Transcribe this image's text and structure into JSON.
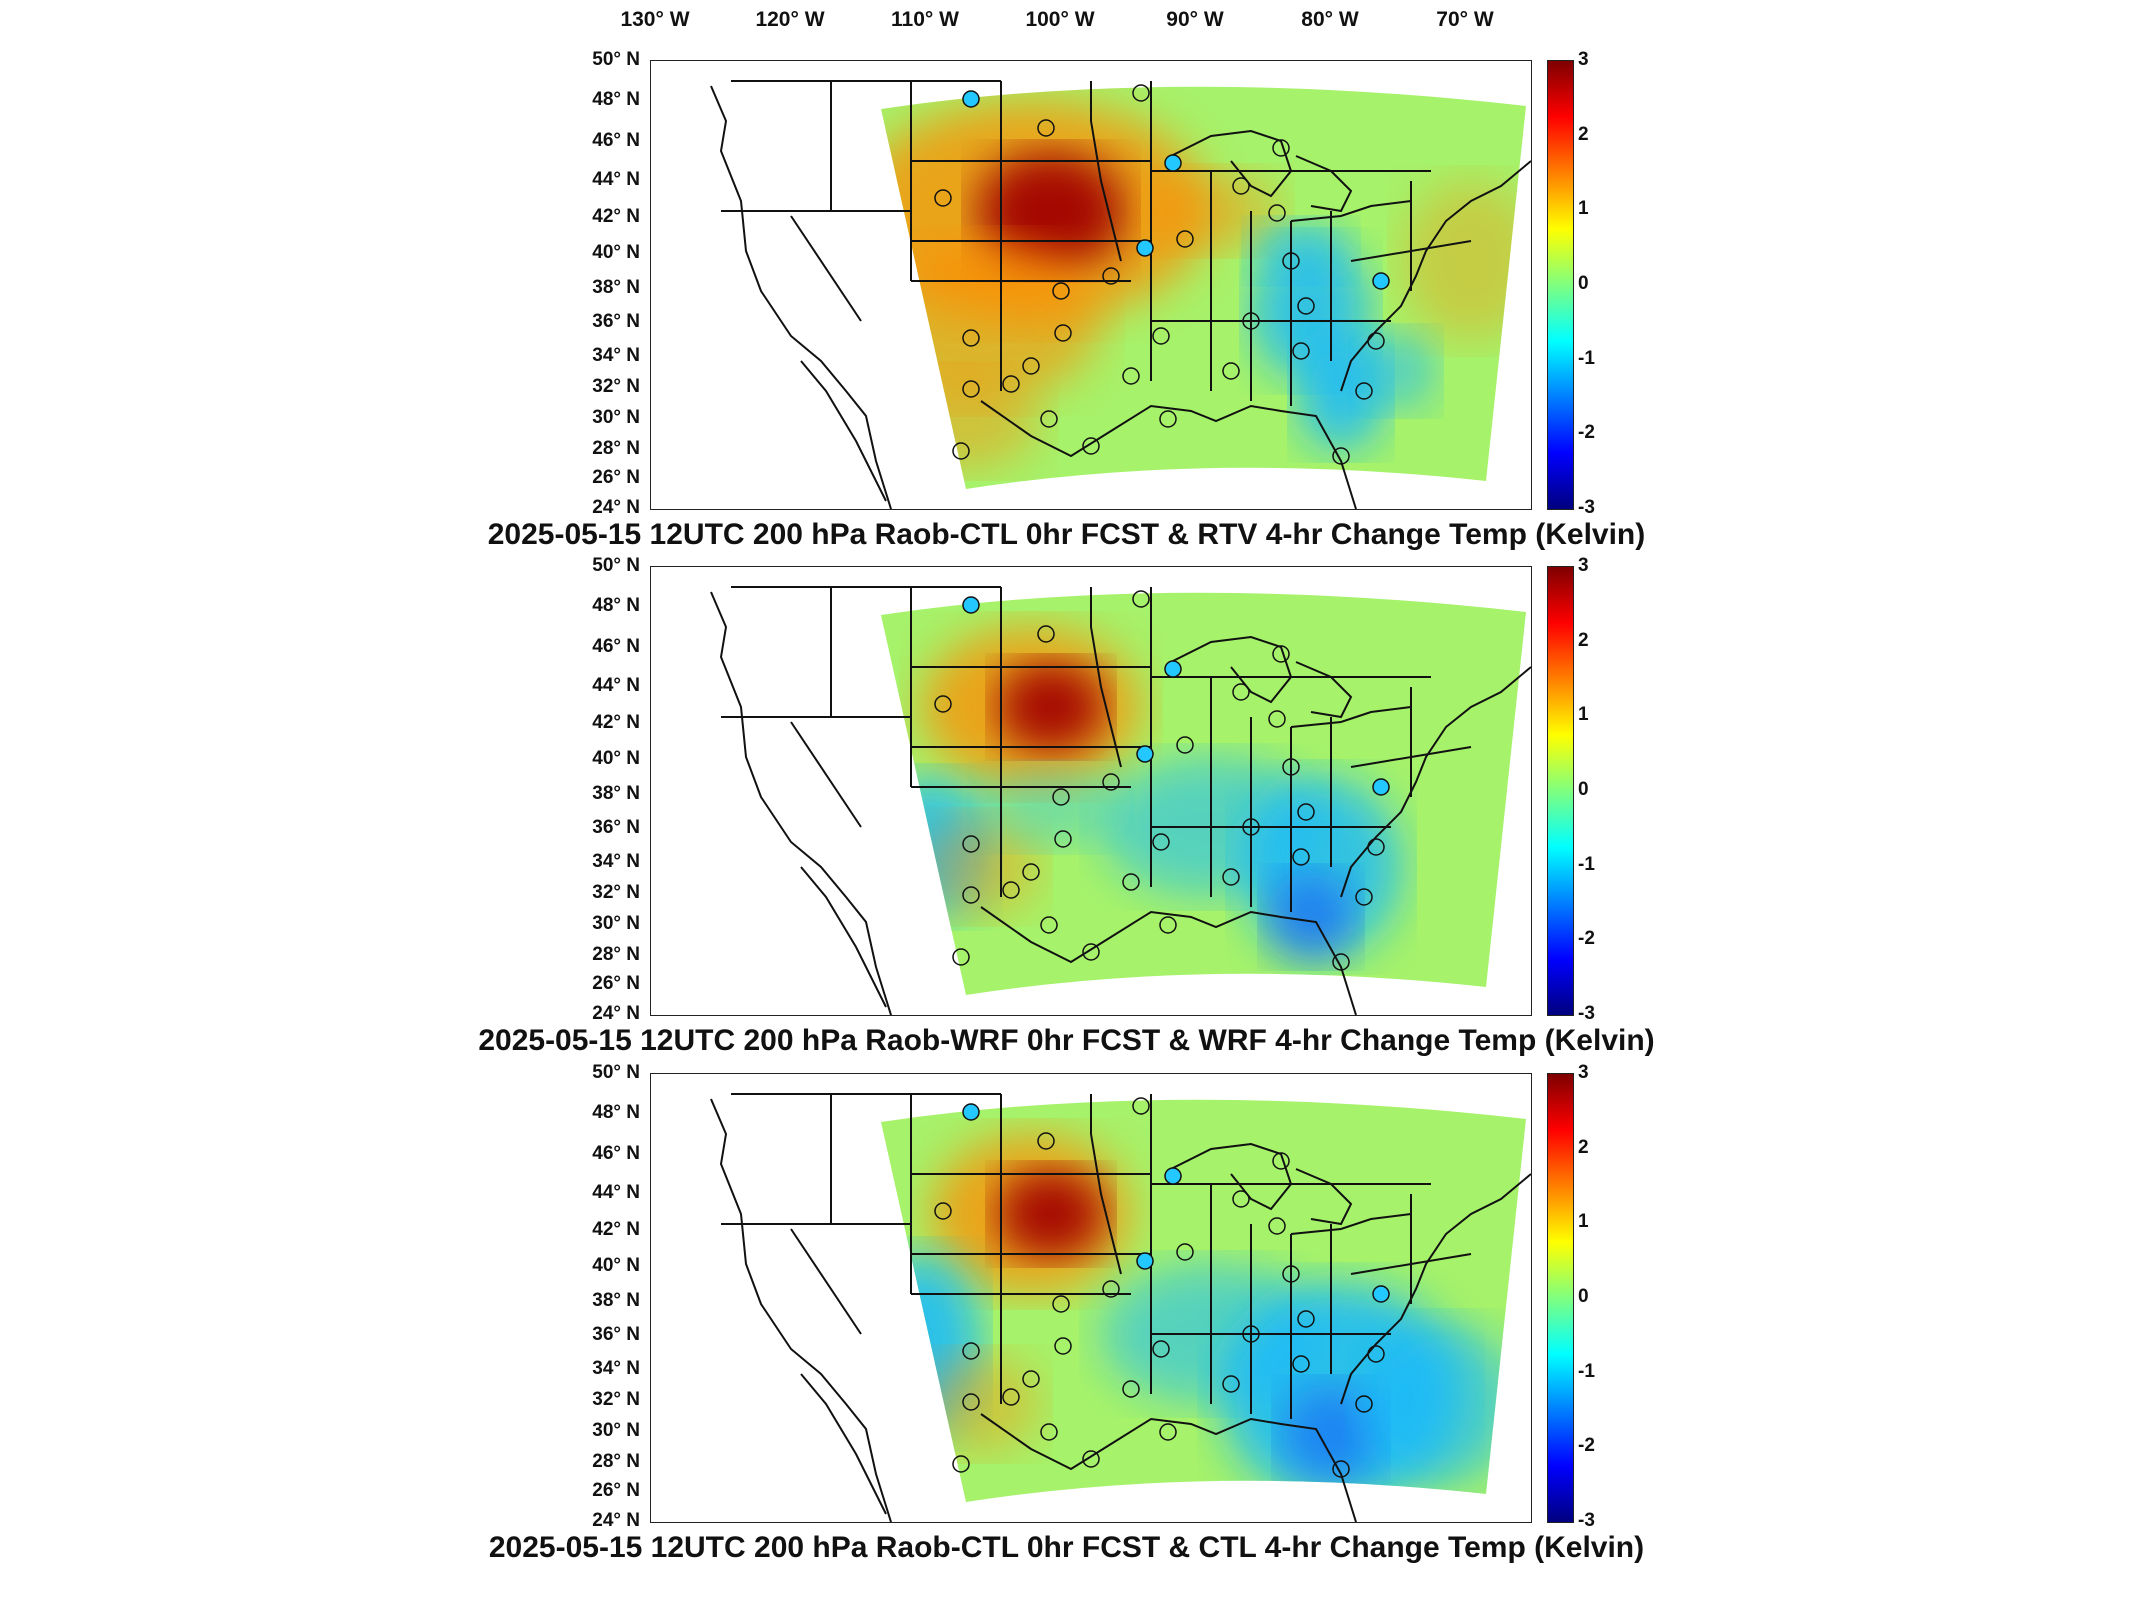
{
  "lon_labels": [
    "130° W",
    "120° W",
    "110° W",
    "100° W",
    "90° W",
    "80° W",
    "70° W"
  ],
  "lat_labels": [
    "50° N",
    "48° N",
    "46° N",
    "44° N",
    "42° N",
    "40° N",
    "38° N",
    "36° N",
    "34° N",
    "32° N",
    "30° N",
    "28° N",
    "26° N",
    "24° N"
  ],
  "colorbar": {
    "ticks": [
      "3",
      "2",
      "1",
      "0",
      "-1",
      "-2",
      "-3"
    ],
    "range": [
      -3,
      3
    ],
    "colormap": "jet"
  },
  "panels": [
    {
      "title": "2025-05-15 12UTC 200 hPa Raob-CTL 0hr FCST & RTV 4-hr Change Temp (Kelvin)"
    },
    {
      "title": "2025-05-15 12UTC 200 hPa Raob-WRF 0hr FCST & WRF 4-hr Change Temp (Kelvin)"
    },
    {
      "title": "2025-05-15 12UTC 200 hPa Raob-CTL 0hr FCST & CTL 4-hr Change Temp (Kelvin)"
    }
  ],
  "colors": {
    "hot": "#a10000",
    "warm": "#ff8a00",
    "neutral": "#7cf08a",
    "cool": "#19b8ff",
    "cold": "#0a3cff",
    "domain_base": "#a6f26a"
  }
}
